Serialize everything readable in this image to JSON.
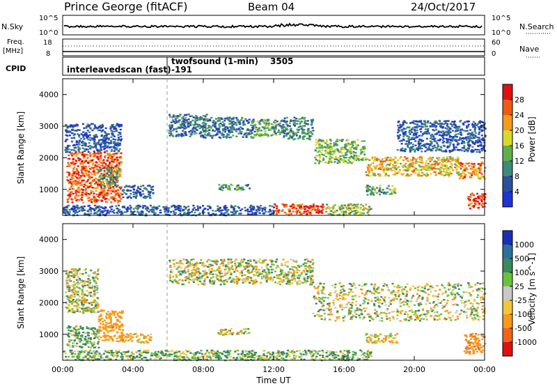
{
  "header": {
    "station": "Prince George (fitACF)",
    "beam": "Beam 04",
    "date": "24/Oct/2017"
  },
  "top_panel": {
    "nsky_label": "N.Sky",
    "nsky_ticks": [
      "10^5",
      "10^0"
    ],
    "nsearch_label": "N.Search",
    "nsearch_ticks": [
      "10^5",
      "10^0"
    ],
    "freq_label": "Freq.",
    "freq_unit": "[MHz]",
    "freq_ticks": [
      "18",
      "8"
    ],
    "nave_label": "Nave",
    "nave_ticks": [
      "60",
      "0"
    ],
    "cpid_label": "CPID",
    "cpid_entries": [
      {
        "name": "interleavedscan (fast)",
        "id": "-191"
      },
      {
        "name": "twofsound (1-min)",
        "id": "3505"
      }
    ]
  },
  "colorbars": {
    "power": {
      "label": "Power [dB]",
      "ticks": [
        "4",
        "8",
        "12",
        "16",
        "20",
        "24",
        "28"
      ],
      "colors": [
        "#1f33d6",
        "#2c4fa0",
        "#3d8a78",
        "#5fb04a",
        "#d8d82a",
        "#f59a1a",
        "#f05a14",
        "#e01010"
      ]
    },
    "velocity": {
      "label": "Velocity [m s^-1]",
      "ticks": [
        "1000",
        "500",
        "100",
        "25",
        "-25",
        "-100",
        "-500",
        "-1000"
      ],
      "colors": [
        "#1a2fb8",
        "#2c6fa0",
        "#3a8a5a",
        "#66c43a",
        "#c8c8c8",
        "#f2c63a",
        "#f59a1a",
        "#f0641a",
        "#e01010"
      ]
    }
  },
  "axes": {
    "ylabel": "Slant Range [km]",
    "yticks": [
      "1000",
      "2000",
      "3000",
      "4000"
    ],
    "xticks": [
      "00:00",
      "04:00",
      "08:00",
      "12:00",
      "16:00",
      "20:00",
      "00:00"
    ],
    "xlabel": "Time UT"
  },
  "chart_data": [
    {
      "type": "heatmap",
      "title": "Power [dB]",
      "xlabel": "",
      "ylabel": "Slant Range [km]",
      "x_unit": "hours UT",
      "xlim": [
        0,
        24
      ],
      "ylim": [
        180,
        4500
      ],
      "zlim": [
        0,
        32
      ],
      "regions": [
        {
          "x0": 0.1,
          "x1": 3.3,
          "y0": 2200,
          "y1": 3100,
          "value": 6
        },
        {
          "x0": 0.2,
          "x1": 3.3,
          "y0": 600,
          "y1": 2200,
          "value": 26
        },
        {
          "x0": 2.0,
          "x1": 3.2,
          "y0": 1100,
          "y1": 1700,
          "value": 12
        },
        {
          "x0": 3.3,
          "x1": 5.1,
          "y0": 750,
          "y1": 1150,
          "value": 6
        },
        {
          "x0": 6.0,
          "x1": 8.2,
          "y0": 2700,
          "y1": 3400,
          "value": 8
        },
        {
          "x0": 7.8,
          "x1": 10.8,
          "y0": 2650,
          "y1": 3300,
          "value": 8
        },
        {
          "x0": 10.8,
          "x1": 12.4,
          "y0": 2700,
          "y1": 3250,
          "value": 12
        },
        {
          "x0": 12.4,
          "x1": 14.2,
          "y0": 2600,
          "y1": 3300,
          "value": 10
        },
        {
          "x0": 8.8,
          "x1": 10.6,
          "y0": 1000,
          "y1": 1200,
          "value": 12
        },
        {
          "x0": 14.3,
          "x1": 17.2,
          "y0": 1850,
          "y1": 2600,
          "value": 14
        },
        {
          "x0": 17.2,
          "x1": 22.5,
          "y0": 1450,
          "y1": 2050,
          "value": 20
        },
        {
          "x0": 22.5,
          "x1": 24.0,
          "y0": 1350,
          "y1": 1900,
          "value": 24
        },
        {
          "x0": 17.2,
          "x1": 19.0,
          "y0": 850,
          "y1": 1150,
          "value": 12
        },
        {
          "x0": 19.0,
          "x1": 24.0,
          "y0": 2200,
          "y1": 3200,
          "value": 6
        },
        {
          "x0": 23.0,
          "x1": 24.0,
          "y0": 400,
          "y1": 900,
          "value": 28
        },
        {
          "x0": 0.0,
          "x1": 12.0,
          "y0": 200,
          "y1": 520,
          "value": 6
        },
        {
          "x0": 12.0,
          "x1": 14.8,
          "y0": 200,
          "y1": 560,
          "value": 28
        },
        {
          "x0": 14.8,
          "x1": 17.5,
          "y0": 200,
          "y1": 560,
          "value": 16
        }
      ]
    },
    {
      "type": "heatmap",
      "title": "Velocity [m s^-1]",
      "xlabel": "Time UT",
      "ylabel": "Slant Range [km]",
      "x_unit": "hours UT",
      "xlim": [
        0,
        24
      ],
      "ylim": [
        180,
        4500
      ],
      "zlim": [
        -1000,
        1000
      ],
      "regions": [
        {
          "x0": 0.1,
          "x1": 2.0,
          "y0": 1700,
          "y1": 3100,
          "value": 0
        },
        {
          "x0": 0.2,
          "x1": 2.0,
          "y0": 600,
          "y1": 1300,
          "value": 120
        },
        {
          "x0": 2.0,
          "x1": 3.4,
          "y0": 800,
          "y1": 1800,
          "value": -300
        },
        {
          "x0": 3.4,
          "x1": 5.0,
          "y0": 750,
          "y1": 1050,
          "value": -150
        },
        {
          "x0": 6.0,
          "x1": 14.2,
          "y0": 2600,
          "y1": 3400,
          "value": 0
        },
        {
          "x0": 14.2,
          "x1": 24.0,
          "y0": 1450,
          "y1": 2650,
          "value": 0
        },
        {
          "x0": 8.8,
          "x1": 10.6,
          "y0": 1000,
          "y1": 1200,
          "value": 0
        },
        {
          "x0": 17.2,
          "x1": 19.0,
          "y0": 750,
          "y1": 1050,
          "value": -120
        },
        {
          "x0": 22.8,
          "x1": 24.0,
          "y0": 400,
          "y1": 1050,
          "value": -400
        },
        {
          "x0": 0.0,
          "x1": 17.5,
          "y0": 200,
          "y1": 520,
          "value": 110
        }
      ]
    }
  ]
}
